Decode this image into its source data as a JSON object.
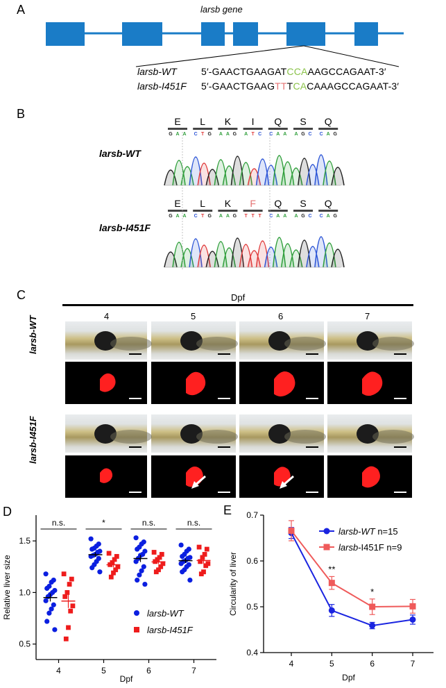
{
  "panels": {
    "A": {
      "letter": "A",
      "gene_title": "larsb gene",
      "rows": [
        {
          "label": "larsb-WT",
          "seq_a": "5′-GAACTGAAGAT",
          "seq_b": "CCA",
          "seq_c": "AAGCCAGAAT-3′",
          "mut_color": "#8bc34a"
        },
        {
          "label": "larsb-I451F",
          "seq_a": "5′-GAACTGAAG",
          "seq_b": "TTT",
          "seq_c": "CAAAGCCAGAAT-3′",
          "mut_color": "#e57373",
          "seq_b_split": [
            "TT",
            "T",
            "CA"
          ]
        }
      ]
    },
    "B": {
      "letter": "B",
      "wt": {
        "label": "larsb-WT",
        "aa": [
          "E",
          "L",
          "K",
          "I",
          "Q",
          "S",
          "Q"
        ],
        "nuc": [
          "GAA",
          "CTG",
          "AAG",
          "ATC",
          "CAA",
          "AGC",
          "CAG"
        ]
      },
      "mut": {
        "label": "larsb-I451F",
        "aa": [
          "E",
          "L",
          "K",
          "F",
          "Q",
          "S",
          "Q"
        ],
        "nuc": [
          "GAA",
          "CTG",
          "AAG",
          "TTT",
          "CAA",
          "AGC",
          "CAG"
        ],
        "mut_index": 3,
        "mut_color": "#e57373"
      }
    },
    "C": {
      "letter": "C",
      "axis_title": "Dpf",
      "days": [
        "4",
        "5",
        "6",
        "7"
      ],
      "row_labels": [
        "larsb-WT",
        "larsb-I451F"
      ]
    },
    "D": {
      "letter": "D"
    },
    "E": {
      "letter": "E"
    }
  },
  "chart_data": [
    {
      "type": "scatter",
      "panel": "D",
      "ylabel": "Relative liver size",
      "xlabel": "Dpf",
      "categories": [
        "4",
        "5",
        "6",
        "7"
      ],
      "ylim": [
        0.35,
        1.75
      ],
      "yticks": [
        "0.5",
        "1.0",
        "1.5"
      ],
      "ytick_values": [
        0.5,
        1.0,
        1.5
      ],
      "significance": [
        "n.s.",
        "*",
        "n.s.",
        "n.s."
      ],
      "legend_position": "bottom-right",
      "series": [
        {
          "name": "larsb-WT",
          "color": "#0b1fe0",
          "marker": "circle",
          "values": [
            [
              1.18,
              1.12,
              1.1,
              1.06,
              1.04,
              1.02,
              1.0,
              0.98,
              0.96,
              0.92,
              0.88,
              0.84,
              0.8,
              0.72,
              0.64
            ],
            [
              1.52,
              1.47,
              1.45,
              1.43,
              1.42,
              1.4,
              1.39,
              1.37,
              1.36,
              1.35,
              1.33,
              1.3,
              1.27,
              1.24,
              1.2
            ],
            [
              1.53,
              1.49,
              1.47,
              1.44,
              1.42,
              1.4,
              1.37,
              1.36,
              1.33,
              1.3,
              1.25,
              1.21,
              1.17,
              1.12,
              1.08
            ],
            [
              1.46,
              1.42,
              1.4,
              1.37,
              1.35,
              1.34,
              1.33,
              1.31,
              1.3,
              1.28,
              1.27,
              1.25,
              1.22,
              1.2,
              1.12
            ]
          ]
        },
        {
          "name": "larsb-I451F",
          "color": "#ee1c1c",
          "marker": "square",
          "values": [
            [
              1.18,
              1.13,
              1.08,
              1.0,
              0.96,
              0.87,
              0.82,
              0.66,
              0.55
            ],
            [
              1.38,
              1.35,
              1.32,
              1.29,
              1.27,
              1.25,
              1.22,
              1.19,
              1.15
            ],
            [
              1.39,
              1.37,
              1.34,
              1.32,
              1.3,
              1.28,
              1.25,
              1.22,
              1.2
            ],
            [
              1.44,
              1.42,
              1.37,
              1.34,
              1.3,
              1.28,
              1.26,
              1.2,
              1.18
            ]
          ]
        }
      ]
    },
    {
      "type": "line",
      "panel": "E",
      "ylabel": "Circularity of liver",
      "xlabel": "Dpf",
      "x": [
        "4",
        "5",
        "6",
        "7"
      ],
      "ylim": [
        0.4,
        0.7
      ],
      "yticks": [
        "0.4",
        "0.5",
        "0.6",
        "0.7"
      ],
      "ytick_values": [
        0.4,
        0.5,
        0.6,
        0.7
      ],
      "annotations": [
        {
          "x": "5",
          "text": "**"
        },
        {
          "x": "6",
          "text": "*"
        }
      ],
      "legend_position": "top-right",
      "series": [
        {
          "name_italic": "larsb-WT",
          "name_rest": " n=15",
          "color": "#1a24e0",
          "marker": "circle",
          "values": [
            0.661,
            0.492,
            0.459,
            0.472
          ],
          "errors": [
            0.012,
            0.013,
            0.007,
            0.01
          ]
        },
        {
          "name_italic": "larsb",
          "name_rest": "-I451F n=9",
          "color": "#ef5a5a",
          "marker": "square",
          "values": [
            0.666,
            0.552,
            0.5,
            0.501
          ],
          "errors": [
            0.022,
            0.014,
            0.017,
            0.015
          ]
        }
      ]
    }
  ]
}
